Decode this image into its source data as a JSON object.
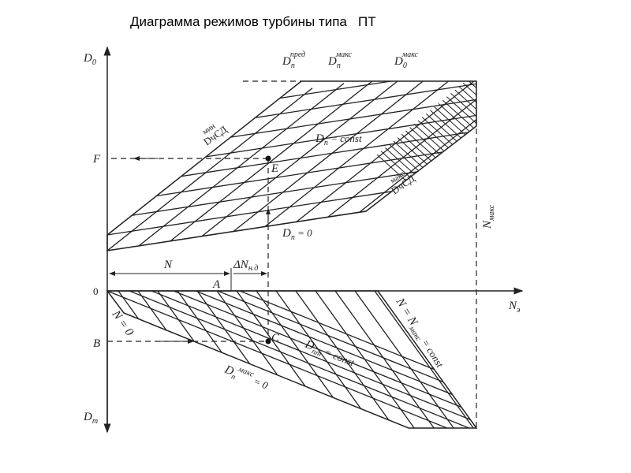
{
  "title": "Диаграмма режимов турбины типа   ПТ",
  "axes": {
    "y_top": "D",
    "y_top_sub": "0",
    "y_bottom": "D",
    "y_bottom_sub": "т",
    "x": "N",
    "x_sub": "э",
    "origin": "0"
  },
  "points": {
    "F": "F",
    "E": "E",
    "B": "B",
    "C": "C",
    "A": "A"
  },
  "upper_labels": {
    "dp_pred": "D",
    "dp_pred_sub": "п",
    "dp_pred_sup": "пред",
    "dp_max": "D",
    "dp_max_sub": "п",
    "dp_max_sup": "макс",
    "d0_max": "D",
    "d0_max_sub": "0",
    "d0_max_sup": "макс",
    "dcsd_min": "DчСД",
    "dcsd_min_sup": "мин",
    "dcsd_max": "DчСД",
    "dcsd_max_sup": "макс",
    "dp_const": "D",
    "dp_const_sub": "п",
    "dp_const_rest": " = const",
    "dp_zero": "D",
    "dp_zero_sub": "п",
    "dp_zero_rest": " = 0",
    "n_max": "N",
    "n_max_sub": "макс"
  },
  "dimension_labels": {
    "n": "N",
    "dn": "ΔN",
    "dn_sub": "н.д"
  },
  "lower_labels": {
    "n_zero": "N = 0",
    "n_max_const": "N = N",
    "n_max_const_sub": "макс",
    "n_max_const_rest": " = const",
    "dpt_const": "D",
    "dpt_const_sub": "пт",
    "dpt_const_rest": " = const",
    "dp_max_zero": "D",
    "dp_max_zero_sub": "п",
    "dp_max_zero_sup": "макс",
    "dp_max_zero_rest": " = 0"
  },
  "colors": {
    "line": "#222222",
    "background": "#ffffff"
  }
}
